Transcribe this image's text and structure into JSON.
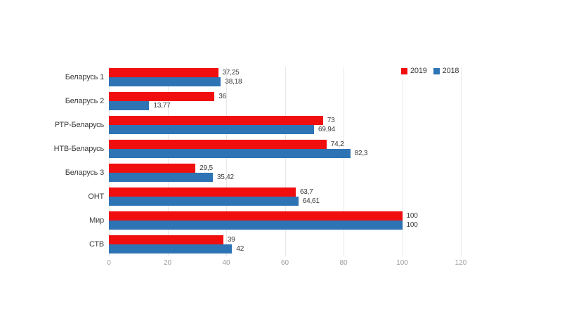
{
  "chart_data": {
    "type": "bar",
    "orientation": "horizontal",
    "title": "",
    "categories": [
      "Беларусь 1",
      "Беларусь 2",
      "РТР-Беларусь",
      "НТВ-Беларусь",
      "Беларусь 3",
      "ОНТ",
      "Мир",
      "СТВ"
    ],
    "series": [
      {
        "name": "2019",
        "color": "#f10e0e",
        "values": [
          37.25,
          36,
          73,
          74.2,
          29.5,
          63.7,
          100,
          39
        ],
        "labels": [
          "37,25",
          "36",
          "73",
          "74,2",
          "29,5",
          "63,7",
          "100",
          "39"
        ]
      },
      {
        "name": "2018",
        "color": "#2e74b5",
        "values": [
          38.18,
          13.77,
          69.94,
          82.3,
          35.42,
          64.61,
          100,
          42
        ],
        "labels": [
          "38,18",
          "13,77",
          "69,94",
          "82,3",
          "35,42",
          "64,61",
          "100",
          "42"
        ]
      }
    ],
    "x_axis": {
      "min": 0,
      "max": 120,
      "ticks": [
        0,
        20,
        40,
        60,
        80,
        100,
        120
      ],
      "tick_labels": [
        "0",
        "20",
        "40",
        "60",
        "80",
        "100",
        "120"
      ]
    },
    "legend": {
      "position": "top-right",
      "items": [
        {
          "label": "2019",
          "color": "#f10e0e"
        },
        {
          "label": "2018",
          "color": "#2e74b5"
        }
      ]
    },
    "grid": true,
    "gridline_color": "#e8e8e8",
    "label_color": "#3d3d3d",
    "tick_color": "#9c9c9c"
  }
}
